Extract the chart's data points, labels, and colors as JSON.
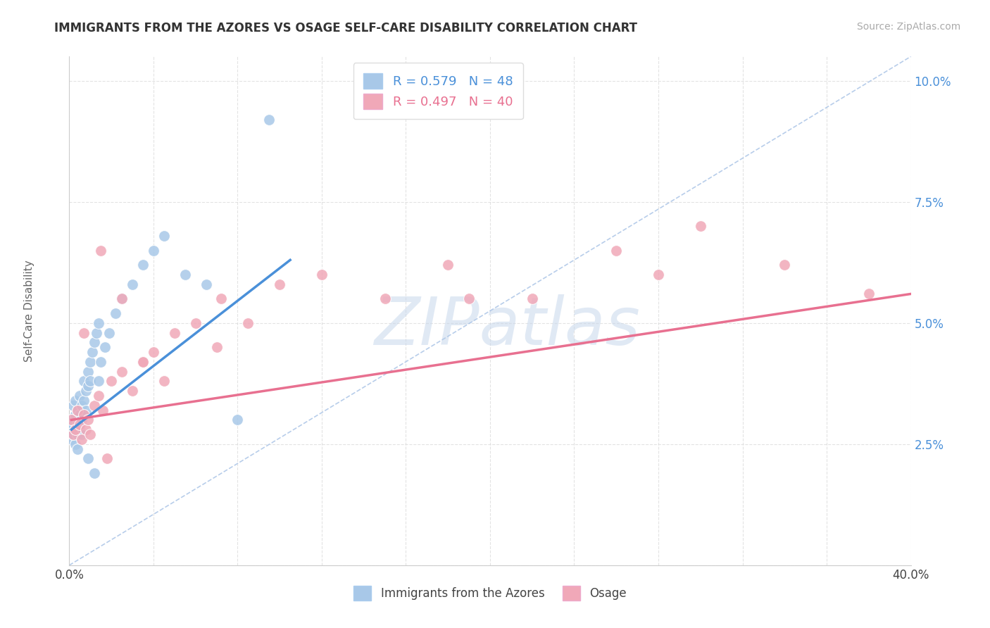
{
  "title": "IMMIGRANTS FROM THE AZORES VS OSAGE SELF-CARE DISABILITY CORRELATION CHART",
  "source_text": "Source: ZipAtlas.com",
  "ylabel": "Self-Care Disability",
  "xlim": [
    0.0,
    0.4
  ],
  "ylim": [
    0.0,
    0.105
  ],
  "xticks": [
    0.0,
    0.04,
    0.08,
    0.12,
    0.16,
    0.2,
    0.24,
    0.28,
    0.32,
    0.36,
    0.4
  ],
  "yticks": [
    0.0,
    0.025,
    0.05,
    0.075,
    0.1
  ],
  "blue_color": "#a8c8e8",
  "pink_color": "#f0a8b8",
  "blue_line_color": "#4a90d9",
  "pink_line_color": "#e87090",
  "diag_color": "#b0c8e8",
  "legend_blue_label": "R = 0.579   N = 48",
  "legend_pink_label": "R = 0.497   N = 40",
  "watermark": "ZIPatlas",
  "legend_label_blue": "Immigrants from the Azores",
  "legend_label_pink": "Osage",
  "blue_scatter_x": [
    0.001,
    0.001,
    0.001,
    0.002,
    0.002,
    0.002,
    0.003,
    0.003,
    0.003,
    0.003,
    0.004,
    0.004,
    0.004,
    0.004,
    0.005,
    0.005,
    0.005,
    0.006,
    0.006,
    0.006,
    0.007,
    0.007,
    0.008,
    0.008,
    0.009,
    0.009,
    0.01,
    0.01,
    0.011,
    0.012,
    0.013,
    0.014,
    0.015,
    0.017,
    0.019,
    0.022,
    0.025,
    0.03,
    0.035,
    0.04,
    0.045,
    0.055,
    0.065,
    0.08,
    0.095,
    0.014,
    0.009,
    0.012
  ],
  "blue_scatter_y": [
    0.03,
    0.028,
    0.026,
    0.033,
    0.029,
    0.027,
    0.034,
    0.031,
    0.028,
    0.025,
    0.032,
    0.029,
    0.027,
    0.024,
    0.035,
    0.031,
    0.028,
    0.033,
    0.03,
    0.027,
    0.038,
    0.034,
    0.036,
    0.032,
    0.04,
    0.037,
    0.042,
    0.038,
    0.044,
    0.046,
    0.048,
    0.05,
    0.042,
    0.045,
    0.048,
    0.052,
    0.055,
    0.058,
    0.062,
    0.065,
    0.068,
    0.06,
    0.058,
    0.03,
    0.092,
    0.038,
    0.022,
    0.019
  ],
  "pink_scatter_x": [
    0.001,
    0.002,
    0.003,
    0.004,
    0.005,
    0.006,
    0.007,
    0.008,
    0.009,
    0.01,
    0.012,
    0.014,
    0.016,
    0.02,
    0.025,
    0.03,
    0.035,
    0.04,
    0.05,
    0.06,
    0.072,
    0.085,
    0.1,
    0.12,
    0.15,
    0.18,
    0.22,
    0.26,
    0.3,
    0.34,
    0.015,
    0.025,
    0.035,
    0.045,
    0.07,
    0.19,
    0.28,
    0.007,
    0.018,
    0.38
  ],
  "pink_scatter_y": [
    0.03,
    0.027,
    0.028,
    0.032,
    0.029,
    0.026,
    0.031,
    0.028,
    0.03,
    0.027,
    0.033,
    0.035,
    0.032,
    0.038,
    0.04,
    0.036,
    0.042,
    0.044,
    0.048,
    0.05,
    0.055,
    0.05,
    0.058,
    0.06,
    0.055,
    0.062,
    0.055,
    0.065,
    0.07,
    0.062,
    0.065,
    0.055,
    0.042,
    0.038,
    0.045,
    0.055,
    0.06,
    0.048,
    0.022,
    0.056
  ],
  "blue_trend_x": [
    0.001,
    0.105
  ],
  "blue_trend_y": [
    0.028,
    0.063
  ],
  "pink_trend_x": [
    0.001,
    0.4
  ],
  "pink_trend_y": [
    0.03,
    0.056
  ],
  "background_color": "#ffffff",
  "grid_color": "#d8d8d8"
}
